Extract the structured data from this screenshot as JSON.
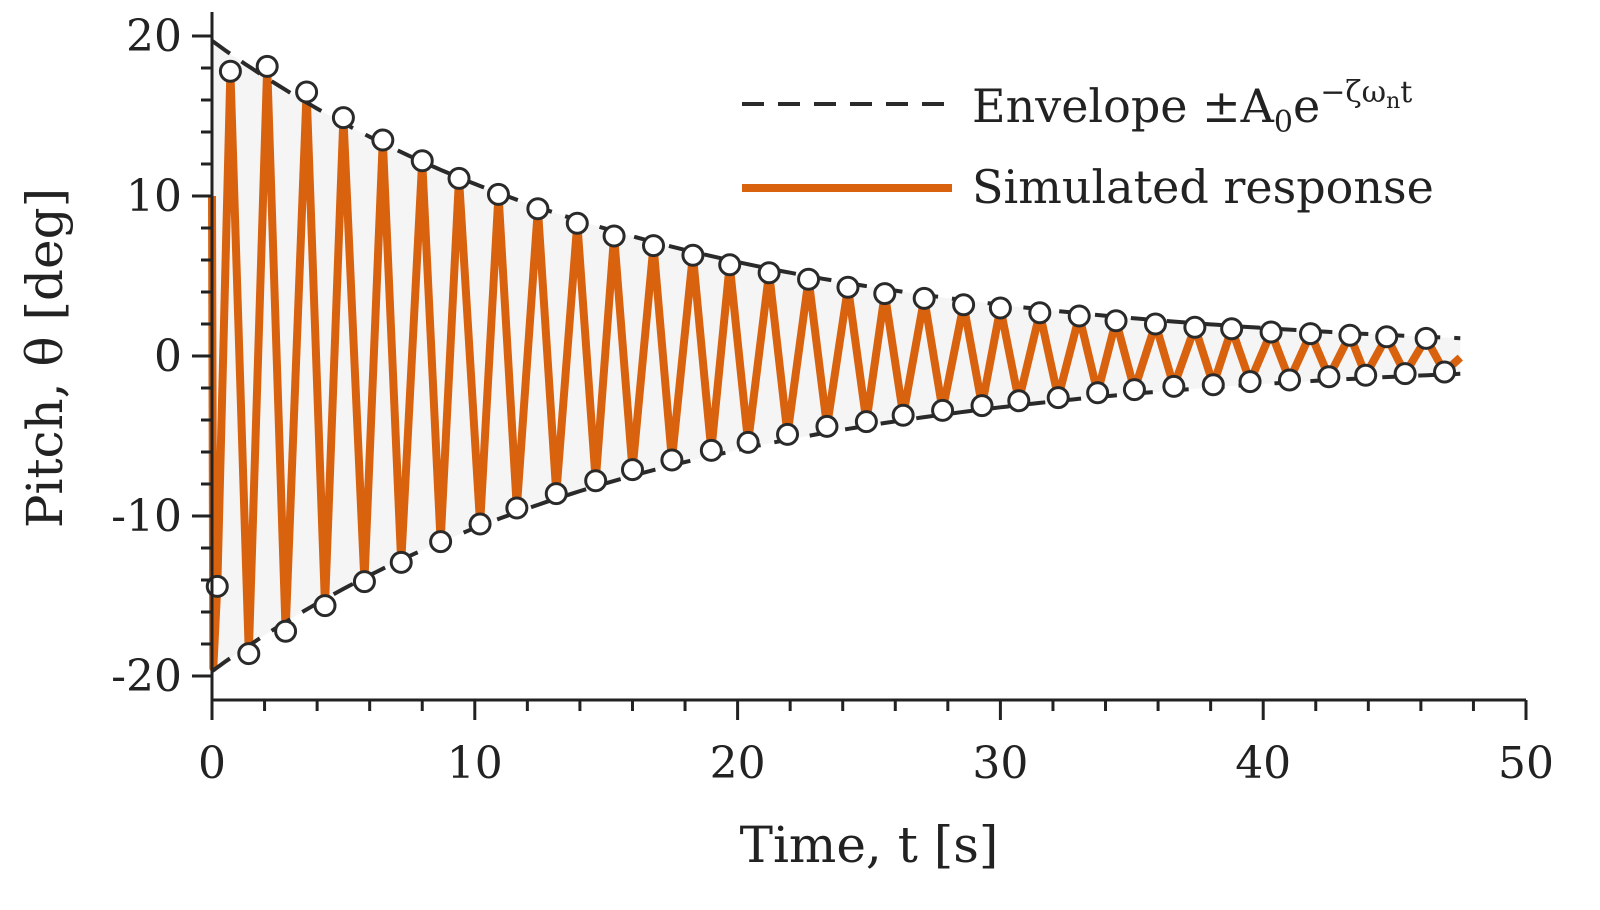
{
  "chart_data": {
    "type": "line",
    "xlabel": "Time, t [s]",
    "ylabel": "Pitch, θ [deg]",
    "xlim": [
      0,
      50
    ],
    "ylim": [
      -21.5,
      21.5
    ],
    "xticks": [
      0,
      10,
      20,
      30,
      40,
      50
    ],
    "yticks": [
      -20,
      -10,
      0,
      10,
      20
    ],
    "xtick_labels": [
      "0",
      "10",
      "20",
      "30",
      "40",
      "50"
    ],
    "ytick_labels": [
      "-20",
      "-10",
      "0",
      "10",
      "20"
    ],
    "grid": false,
    "legend_position": "top-right",
    "legend": {
      "envelope": {
        "label": "Envelope ±A",
        "sub": "0",
        "base": "e",
        "sup": "−ζω",
        "sup_sub": "n",
        "sup_tail": "t"
      },
      "response": {
        "label": "Simulated response"
      }
    },
    "colors": {
      "response": "#d9620f",
      "envelope": "#2a2a2a",
      "fill": "#f2f2f2"
    },
    "series": [
      {
        "name": "Envelope ±A0e^(−ζωn t)",
        "style": "dashed",
        "A0": 19.7,
        "decay_rate": 0.0605,
        "t_range": [
          0,
          47.5
        ]
      },
      {
        "name": "Simulated response",
        "style": "solid",
        "period": 1.455,
        "t_range": [
          0,
          47.5
        ],
        "initial_value": 10
      }
    ],
    "markers": {
      "upper": [
        [
          0.7,
          17.8
        ],
        [
          2.1,
          18.1
        ],
        [
          3.6,
          16.5
        ],
        [
          5.0,
          14.9
        ],
        [
          6.5,
          13.5
        ],
        [
          8.0,
          12.2
        ],
        [
          9.4,
          11.1
        ],
        [
          10.9,
          10.1
        ],
        [
          12.4,
          9.2
        ],
        [
          13.9,
          8.3
        ],
        [
          15.3,
          7.5
        ],
        [
          16.8,
          6.9
        ],
        [
          18.3,
          6.3
        ],
        [
          19.7,
          5.7
        ],
        [
          21.2,
          5.2
        ],
        [
          22.7,
          4.8
        ],
        [
          24.2,
          4.3
        ],
        [
          25.6,
          3.9
        ],
        [
          27.1,
          3.6
        ],
        [
          28.6,
          3.2
        ],
        [
          30.0,
          3.0
        ],
        [
          31.5,
          2.7
        ],
        [
          33.0,
          2.5
        ],
        [
          34.4,
          2.2
        ],
        [
          35.9,
          2.0
        ],
        [
          37.4,
          1.8
        ],
        [
          38.8,
          1.7
        ],
        [
          40.3,
          1.5
        ],
        [
          41.8,
          1.4
        ],
        [
          43.3,
          1.3
        ],
        [
          44.7,
          1.2
        ],
        [
          46.2,
          1.1
        ]
      ],
      "lower": [
        [
          0.2,
          -14.4
        ],
        [
          1.4,
          -18.6
        ],
        [
          2.8,
          -17.2
        ],
        [
          4.3,
          -15.6
        ],
        [
          5.8,
          -14.1
        ],
        [
          7.2,
          -12.9
        ],
        [
          8.7,
          -11.6
        ],
        [
          10.2,
          -10.5
        ],
        [
          11.6,
          -9.5
        ],
        [
          13.1,
          -8.6
        ],
        [
          14.6,
          -7.8
        ],
        [
          16.0,
          -7.1
        ],
        [
          17.5,
          -6.5
        ],
        [
          19.0,
          -5.9
        ],
        [
          20.4,
          -5.4
        ],
        [
          21.9,
          -4.9
        ],
        [
          23.4,
          -4.4
        ],
        [
          24.9,
          -4.1
        ],
        [
          26.3,
          -3.7
        ],
        [
          27.8,
          -3.4
        ],
        [
          29.3,
          -3.1
        ],
        [
          30.7,
          -2.8
        ],
        [
          32.2,
          -2.6
        ],
        [
          33.7,
          -2.3
        ],
        [
          35.1,
          -2.1
        ],
        [
          36.6,
          -1.9
        ],
        [
          38.1,
          -1.8
        ],
        [
          39.5,
          -1.6
        ],
        [
          41.0,
          -1.5
        ],
        [
          42.5,
          -1.3
        ],
        [
          43.9,
          -1.2
        ],
        [
          45.4,
          -1.1
        ],
        [
          46.9,
          -1.0
        ]
      ]
    }
  }
}
